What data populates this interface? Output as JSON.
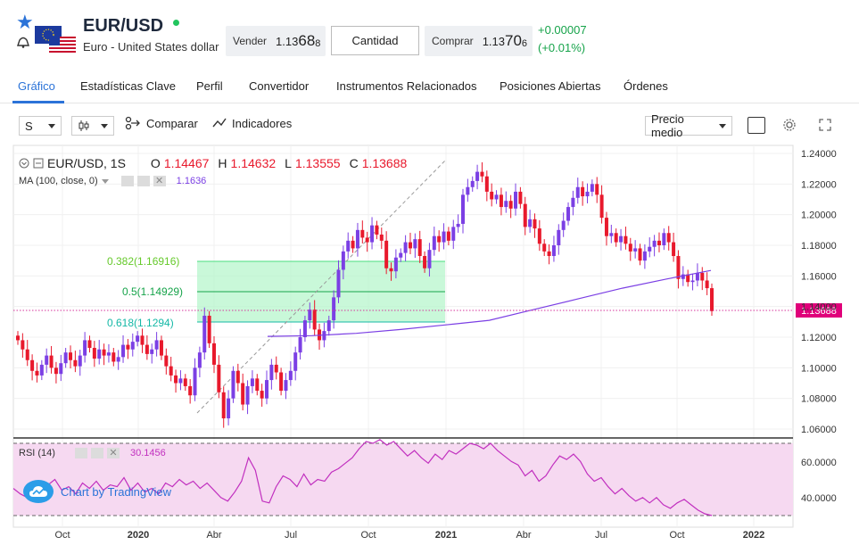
{
  "header": {
    "symbol": "EUR/USD",
    "name": "Euro - United States dollar",
    "sell": {
      "label": "Vender",
      "prefix": "1.13",
      "big": "68",
      "small": "8"
    },
    "quantity_label": "Cantidad",
    "buy": {
      "label": "Comprar",
      "prefix": "1.13",
      "big": "70",
      "small": "6"
    },
    "change_abs": "+0.00007",
    "change_pct": "(+0.01%)"
  },
  "tabs": [
    {
      "label": "Gráfico",
      "active": true
    },
    {
      "label": "Estadísticas Clave"
    },
    {
      "label": "Perfil"
    },
    {
      "label": "Convertidor"
    },
    {
      "label": "Instrumentos Relacionados"
    },
    {
      "label": "Posiciones Abiertas"
    },
    {
      "label": "Órdenes"
    }
  ],
  "toolbar": {
    "interval": "S",
    "compare_label": "Comparar",
    "indicators_label": "Indicadores",
    "price_type": "Precio medio"
  },
  "legend": {
    "symbol": "EUR/USD, 1S",
    "o_label": "O",
    "o_val": "1.14467",
    "h_label": "H",
    "h_val": "1.14632",
    "l_label": "L",
    "l_val": "1.13555",
    "c_label": "C",
    "c_val": "1.13688",
    "ma_label": "MA (100, close, 0)",
    "ma_val": "1.1636",
    "rsi_label": "RSI (14)",
    "rsi_val": "30.1456"
  },
  "watermark": "Chart by TradingView",
  "colors": {
    "up": "#7b3fe4",
    "down": "#e8192c",
    "ma": "#7b3fe4",
    "rsi": "#c12fbf",
    "fib_fill": "#b7f5cc",
    "accent": "#2b73d8"
  },
  "chart_data": [
    {
      "type": "candlestick",
      "title": "EUR/USD, 1S",
      "x_ticks": [
        "Oct",
        "2020",
        "Abr",
        "Jul",
        "Oct",
        "2021",
        "Abr",
        "Jul",
        "Oct",
        "2022"
      ],
      "y_ticks": [
        "1.24000",
        "1.22000",
        "1.20000",
        "1.18000",
        "1.16000",
        "1.14000",
        "1.12000",
        "1.10000",
        "1.08000",
        "1.06000"
      ],
      "ylim": [
        1.055,
        1.245
      ],
      "last_price": "1.13688",
      "fib_levels": [
        {
          "label": "0.382(1.16916)",
          "value": 1.16916
        },
        {
          "label": "0.5(1.14929)",
          "value": 1.14929
        },
        {
          "label": "0.618(1.1294)",
          "value": 1.1294
        }
      ],
      "closes": [
        1.118,
        1.112,
        1.105,
        1.098,
        1.095,
        1.102,
        1.108,
        1.1,
        1.096,
        1.103,
        1.11,
        1.105,
        1.101,
        1.108,
        1.118,
        1.113,
        1.106,
        1.112,
        1.108,
        1.11,
        1.104,
        1.107,
        1.115,
        1.112,
        1.117,
        1.121,
        1.115,
        1.109,
        1.112,
        1.118,
        1.108,
        1.101,
        1.095,
        1.09,
        1.093,
        1.088,
        1.082,
        1.1,
        1.11,
        1.134,
        1.116,
        1.102,
        1.084,
        1.067,
        1.08,
        1.098,
        1.09,
        1.076,
        1.088,
        1.093,
        1.085,
        1.08,
        1.092,
        1.102,
        1.097,
        1.085,
        1.092,
        1.098,
        1.11,
        1.12,
        1.131,
        1.138,
        1.125,
        1.118,
        1.124,
        1.131,
        1.146,
        1.164,
        1.176,
        1.183,
        1.178,
        1.19,
        1.185,
        1.182,
        1.193,
        1.187,
        1.183,
        1.165,
        1.163,
        1.172,
        1.175,
        1.182,
        1.178,
        1.184,
        1.173,
        1.165,
        1.177,
        1.186,
        1.182,
        1.189,
        1.183,
        1.192,
        1.194,
        1.213,
        1.218,
        1.222,
        1.228,
        1.225,
        1.215,
        1.21,
        1.213,
        1.205,
        1.209,
        1.204,
        1.215,
        1.207,
        1.192,
        1.197,
        1.191,
        1.181,
        1.176,
        1.173,
        1.18,
        1.19,
        1.196,
        1.205,
        1.211,
        1.218,
        1.212,
        1.215,
        1.22,
        1.213,
        1.198,
        1.186,
        1.188,
        1.182,
        1.186,
        1.181,
        1.176,
        1.178,
        1.17,
        1.176,
        1.179,
        1.183,
        1.18,
        1.188,
        1.182,
        1.173,
        1.158,
        1.161,
        1.156,
        1.157,
        1.162,
        1.157,
        1.152,
        1.137
      ],
      "ma": [
        {
          "x": 0.0,
          "y": 1.1205
        },
        {
          "x": 0.1,
          "y": 1.121
        },
        {
          "x": 0.2,
          "y": 1.1225
        },
        {
          "x": 0.3,
          "y": 1.125
        },
        {
          "x": 0.4,
          "y": 1.128
        },
        {
          "x": 0.5,
          "y": 1.131
        },
        {
          "x": 0.6,
          "y": 1.138
        },
        {
          "x": 0.7,
          "y": 1.145
        },
        {
          "x": 0.8,
          "y": 1.152
        },
        {
          "x": 0.9,
          "y": 1.158
        },
        {
          "x": 1.0,
          "y": 1.1636
        }
      ]
    },
    {
      "type": "line",
      "title": "RSI (14)",
      "y_ticks": [
        "60.0000",
        "40.0000"
      ],
      "ylim": [
        28,
        74
      ],
      "values": [
        45,
        42,
        40,
        43,
        41,
        47,
        50,
        44,
        46,
        42,
        48,
        45,
        49,
        44,
        47,
        46,
        51,
        44,
        48,
        43,
        45,
        42,
        48,
        46,
        50,
        47,
        49,
        45,
        48,
        44,
        40,
        38,
        43,
        49,
        62,
        55,
        38,
        37,
        46,
        52,
        50,
        46,
        53,
        47,
        50,
        49,
        54,
        56,
        59,
        62,
        67,
        71,
        70,
        72,
        69,
        71,
        67,
        63,
        66,
        62,
        59,
        64,
        61,
        66,
        64,
        67,
        70,
        69,
        67,
        70,
        66,
        63,
        60,
        58,
        52,
        55,
        49,
        52,
        58,
        63,
        61,
        64,
        60,
        53,
        49,
        51,
        46,
        42,
        45,
        41,
        38,
        40,
        37,
        40,
        36,
        34,
        37,
        39,
        36,
        33,
        31,
        30
      ]
    }
  ]
}
